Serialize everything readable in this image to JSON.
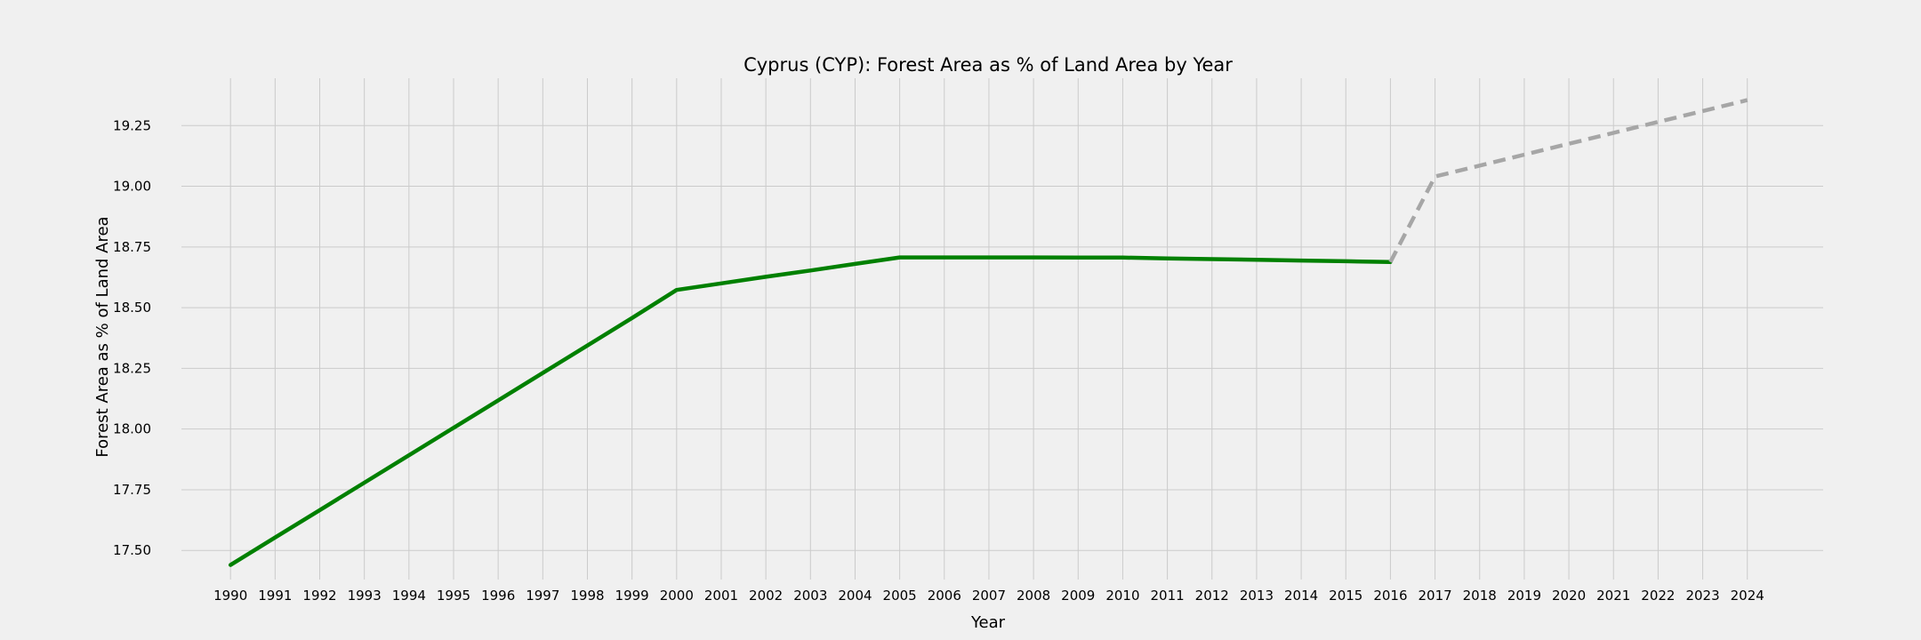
{
  "chart_data": {
    "type": "line",
    "title": "Cyprus (CYP): Forest Area as % of Land Area by Year",
    "xlabel": "Year",
    "ylabel": "Forest Area as % of Land Area",
    "xlim": [
      1988.9,
      2025.7
    ],
    "ylim": [
      17.38,
      19.445
    ],
    "grid": true,
    "x_ticks": [
      1990,
      1991,
      1992,
      1993,
      1994,
      1995,
      1996,
      1997,
      1998,
      1999,
      2000,
      2001,
      2002,
      2003,
      2004,
      2005,
      2006,
      2007,
      2008,
      2009,
      2010,
      2011,
      2012,
      2013,
      2014,
      2015,
      2016,
      2017,
      2018,
      2019,
      2020,
      2021,
      2022,
      2023,
      2024
    ],
    "y_ticks": [
      "17.50",
      "17.75",
      "18.00",
      "18.25",
      "18.50",
      "18.75",
      "19.00",
      "19.25"
    ],
    "series": [
      {
        "style": "solid",
        "color": "#008000",
        "x": [
          1990,
          1991,
          1992,
          1993,
          1994,
          1995,
          1996,
          1997,
          1998,
          1999,
          2000,
          2001,
          2002,
          2003,
          2004,
          2005,
          2006,
          2007,
          2008,
          2009,
          2010,
          2011,
          2012,
          2013,
          2014,
          2015,
          2016
        ],
        "y": [
          17.44,
          17.553,
          17.666,
          17.779,
          17.892,
          18.005,
          18.118,
          18.231,
          18.344,
          18.457,
          18.573,
          18.6,
          18.627,
          18.653,
          18.68,
          18.707,
          18.707,
          18.707,
          18.707,
          18.706,
          18.706,
          18.703,
          18.7,
          18.697,
          18.694,
          18.691,
          18.688
        ]
      },
      {
        "style": "dashed",
        "color": "#a6a6a6",
        "x": [
          2016,
          2017,
          2018,
          2019,
          2020,
          2021,
          2022,
          2023,
          2024
        ],
        "y": [
          18.688,
          19.04,
          19.085,
          19.13,
          19.175,
          19.22,
          19.265,
          19.31,
          19.355
        ]
      }
    ]
  }
}
